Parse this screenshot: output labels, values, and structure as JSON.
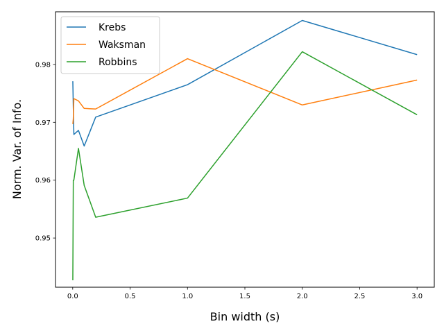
{
  "chart_data": {
    "type": "line",
    "title": "",
    "xlabel": "Bin width (s)",
    "ylabel": "Norm. Var. of Info.",
    "xlim": [
      -0.15,
      3.15
    ],
    "ylim": [
      0.9415,
      0.9891
    ],
    "xticks": [
      0.0,
      0.5,
      1.0,
      1.5,
      2.0,
      2.5,
      3.0
    ],
    "xtick_labels": [
      "0.0",
      "0.5",
      "1.0",
      "1.5",
      "2.0",
      "2.5",
      "3.0"
    ],
    "yticks": [
      0.95,
      0.96,
      0.97,
      0.98
    ],
    "ytick_labels": [
      "0.95",
      "0.96",
      "0.97",
      "0.98"
    ],
    "grid": false,
    "legend_position": "top-left",
    "x": [
      0.001,
      0.005,
      0.01,
      0.05,
      0.1,
      0.2,
      1.0,
      2.0,
      3.0
    ],
    "series": [
      {
        "name": "Krebs",
        "color": "#1f77b4",
        "values": [
          0.9771,
          0.9727,
          0.9679,
          0.9686,
          0.9659,
          0.9709,
          0.9765,
          0.9876,
          0.9817
        ]
      },
      {
        "name": "Waksman",
        "color": "#ff7f0e",
        "values": [
          0.9697,
          0.9706,
          0.9741,
          0.9737,
          0.9724,
          0.9723,
          0.981,
          0.973,
          0.9773
        ]
      },
      {
        "name": "Robbins",
        "color": "#2ca02c",
        "values": [
          0.9427,
          0.96,
          0.96,
          0.9655,
          0.9591,
          0.9536,
          0.9569,
          0.9822,
          0.9713
        ]
      }
    ]
  }
}
